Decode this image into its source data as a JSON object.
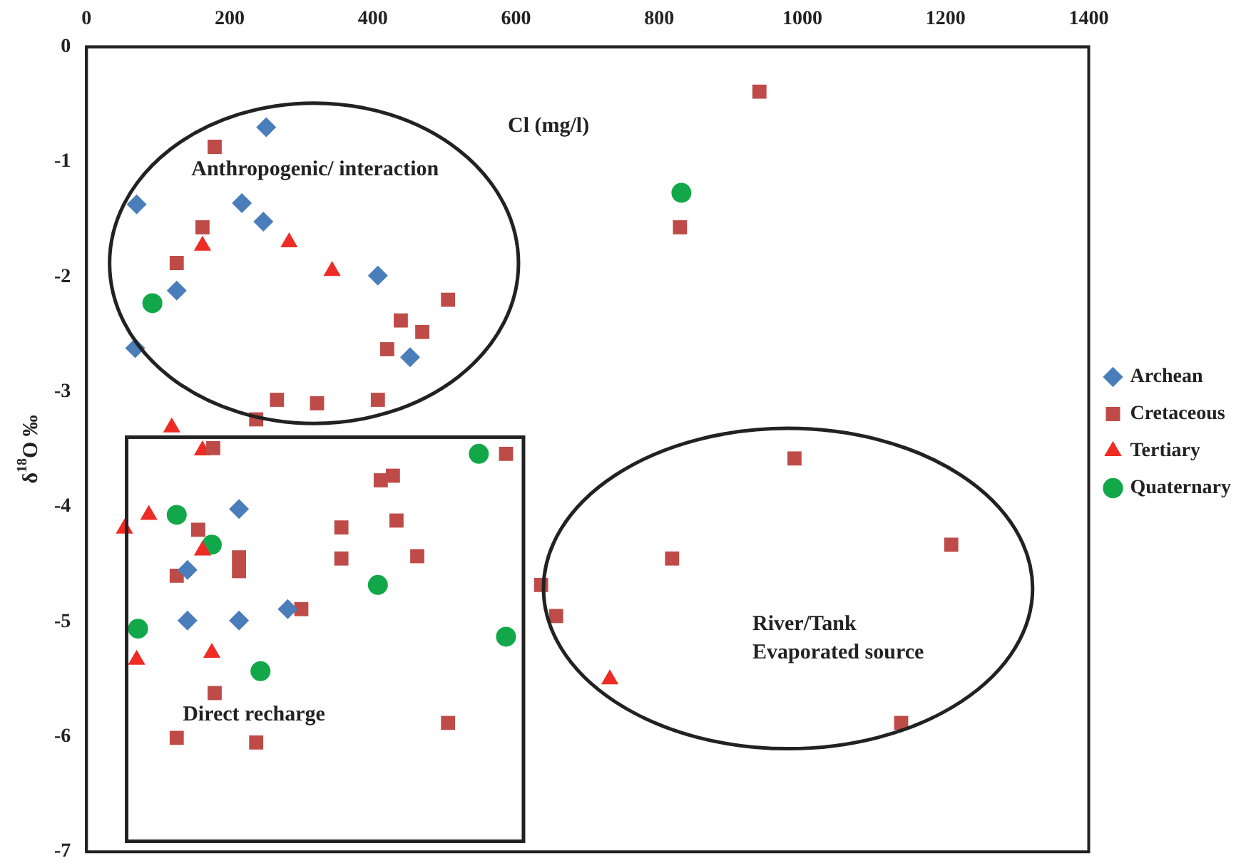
{
  "chart_data": {
    "type": "scatter",
    "xlabel": "Cl (mg/l)",
    "ylabel": "δ$^{18}$O ‰",
    "xlim": [
      0,
      1400
    ],
    "xticks": [
      0,
      200,
      400,
      600,
      800,
      1000,
      1200,
      1400
    ],
    "ylim": [
      -7,
      0
    ],
    "yticks": [
      -7,
      -6,
      -5,
      -4,
      -3,
      -2,
      -1,
      0
    ],
    "grid": false,
    "legend": "right",
    "series": [
      {
        "name": "Archean",
        "color": "#4a7ebb",
        "marker": "diamond",
        "x": [
          251,
          70,
          217,
          247,
          126,
          407,
          68,
          452,
          213,
          141,
          141,
          213,
          281
        ],
        "values": [
          -0.7,
          -1.37,
          -1.36,
          -1.52,
          -2.12,
          -1.99,
          -2.62,
          -2.7,
          -4.02,
          -4.55,
          -4.99,
          -4.99,
          -4.89
        ]
      },
      {
        "name": "Cretaceous",
        "color": "#be4b48",
        "marker": "square",
        "x": [
          179,
          162,
          126,
          505,
          439,
          469,
          420,
          266,
          322,
          407,
          237,
          940,
          829,
          177,
          586,
          411,
          428,
          156,
          356,
          433,
          356,
          462,
          213,
          213,
          126,
          300,
          635,
          656,
          179,
          126,
          237,
          505,
          989,
          818,
          1208,
          1138
        ],
        "values": [
          -0.87,
          -1.57,
          -1.88,
          -2.2,
          -2.38,
          -2.48,
          -2.63,
          -3.07,
          -3.1,
          -3.07,
          -3.24,
          -0.39,
          -1.57,
          -3.49,
          -3.54,
          -3.77,
          -3.73,
          -4.2,
          -4.18,
          -4.12,
          -4.45,
          -4.43,
          -4.44,
          -4.56,
          -4.6,
          -4.89,
          -4.68,
          -4.95,
          -5.62,
          -6.01,
          -6.05,
          -5.88,
          -3.58,
          -4.45,
          -4.33,
          -5.88
        ]
      },
      {
        "name": "Tertiary",
        "color": "#ee2b24",
        "marker": "triangle",
        "x": [
          162,
          283,
          343,
          119,
          162,
          87,
          53,
          162,
          70,
          175,
          731
        ],
        "values": [
          -1.73,
          -1.7,
          -1.95,
          -3.31,
          -3.51,
          -4.07,
          -4.19,
          -4.38,
          -5.33,
          -5.27,
          -5.5
        ]
      },
      {
        "name": "Quaternary",
        "color": "#12a84a",
        "marker": "circle",
        "x": [
          92,
          831,
          548,
          126,
          175,
          407,
          72,
          586,
          243
        ],
        "values": [
          -2.23,
          -1.27,
          -3.54,
          -4.07,
          -4.33,
          -4.68,
          -5.06,
          -5.13,
          -5.43
        ]
      }
    ],
    "annotations": [
      "Anthropogenic/ interaction",
      "Direct recharge",
      "River/Tank\nEvaporated source"
    ]
  }
}
